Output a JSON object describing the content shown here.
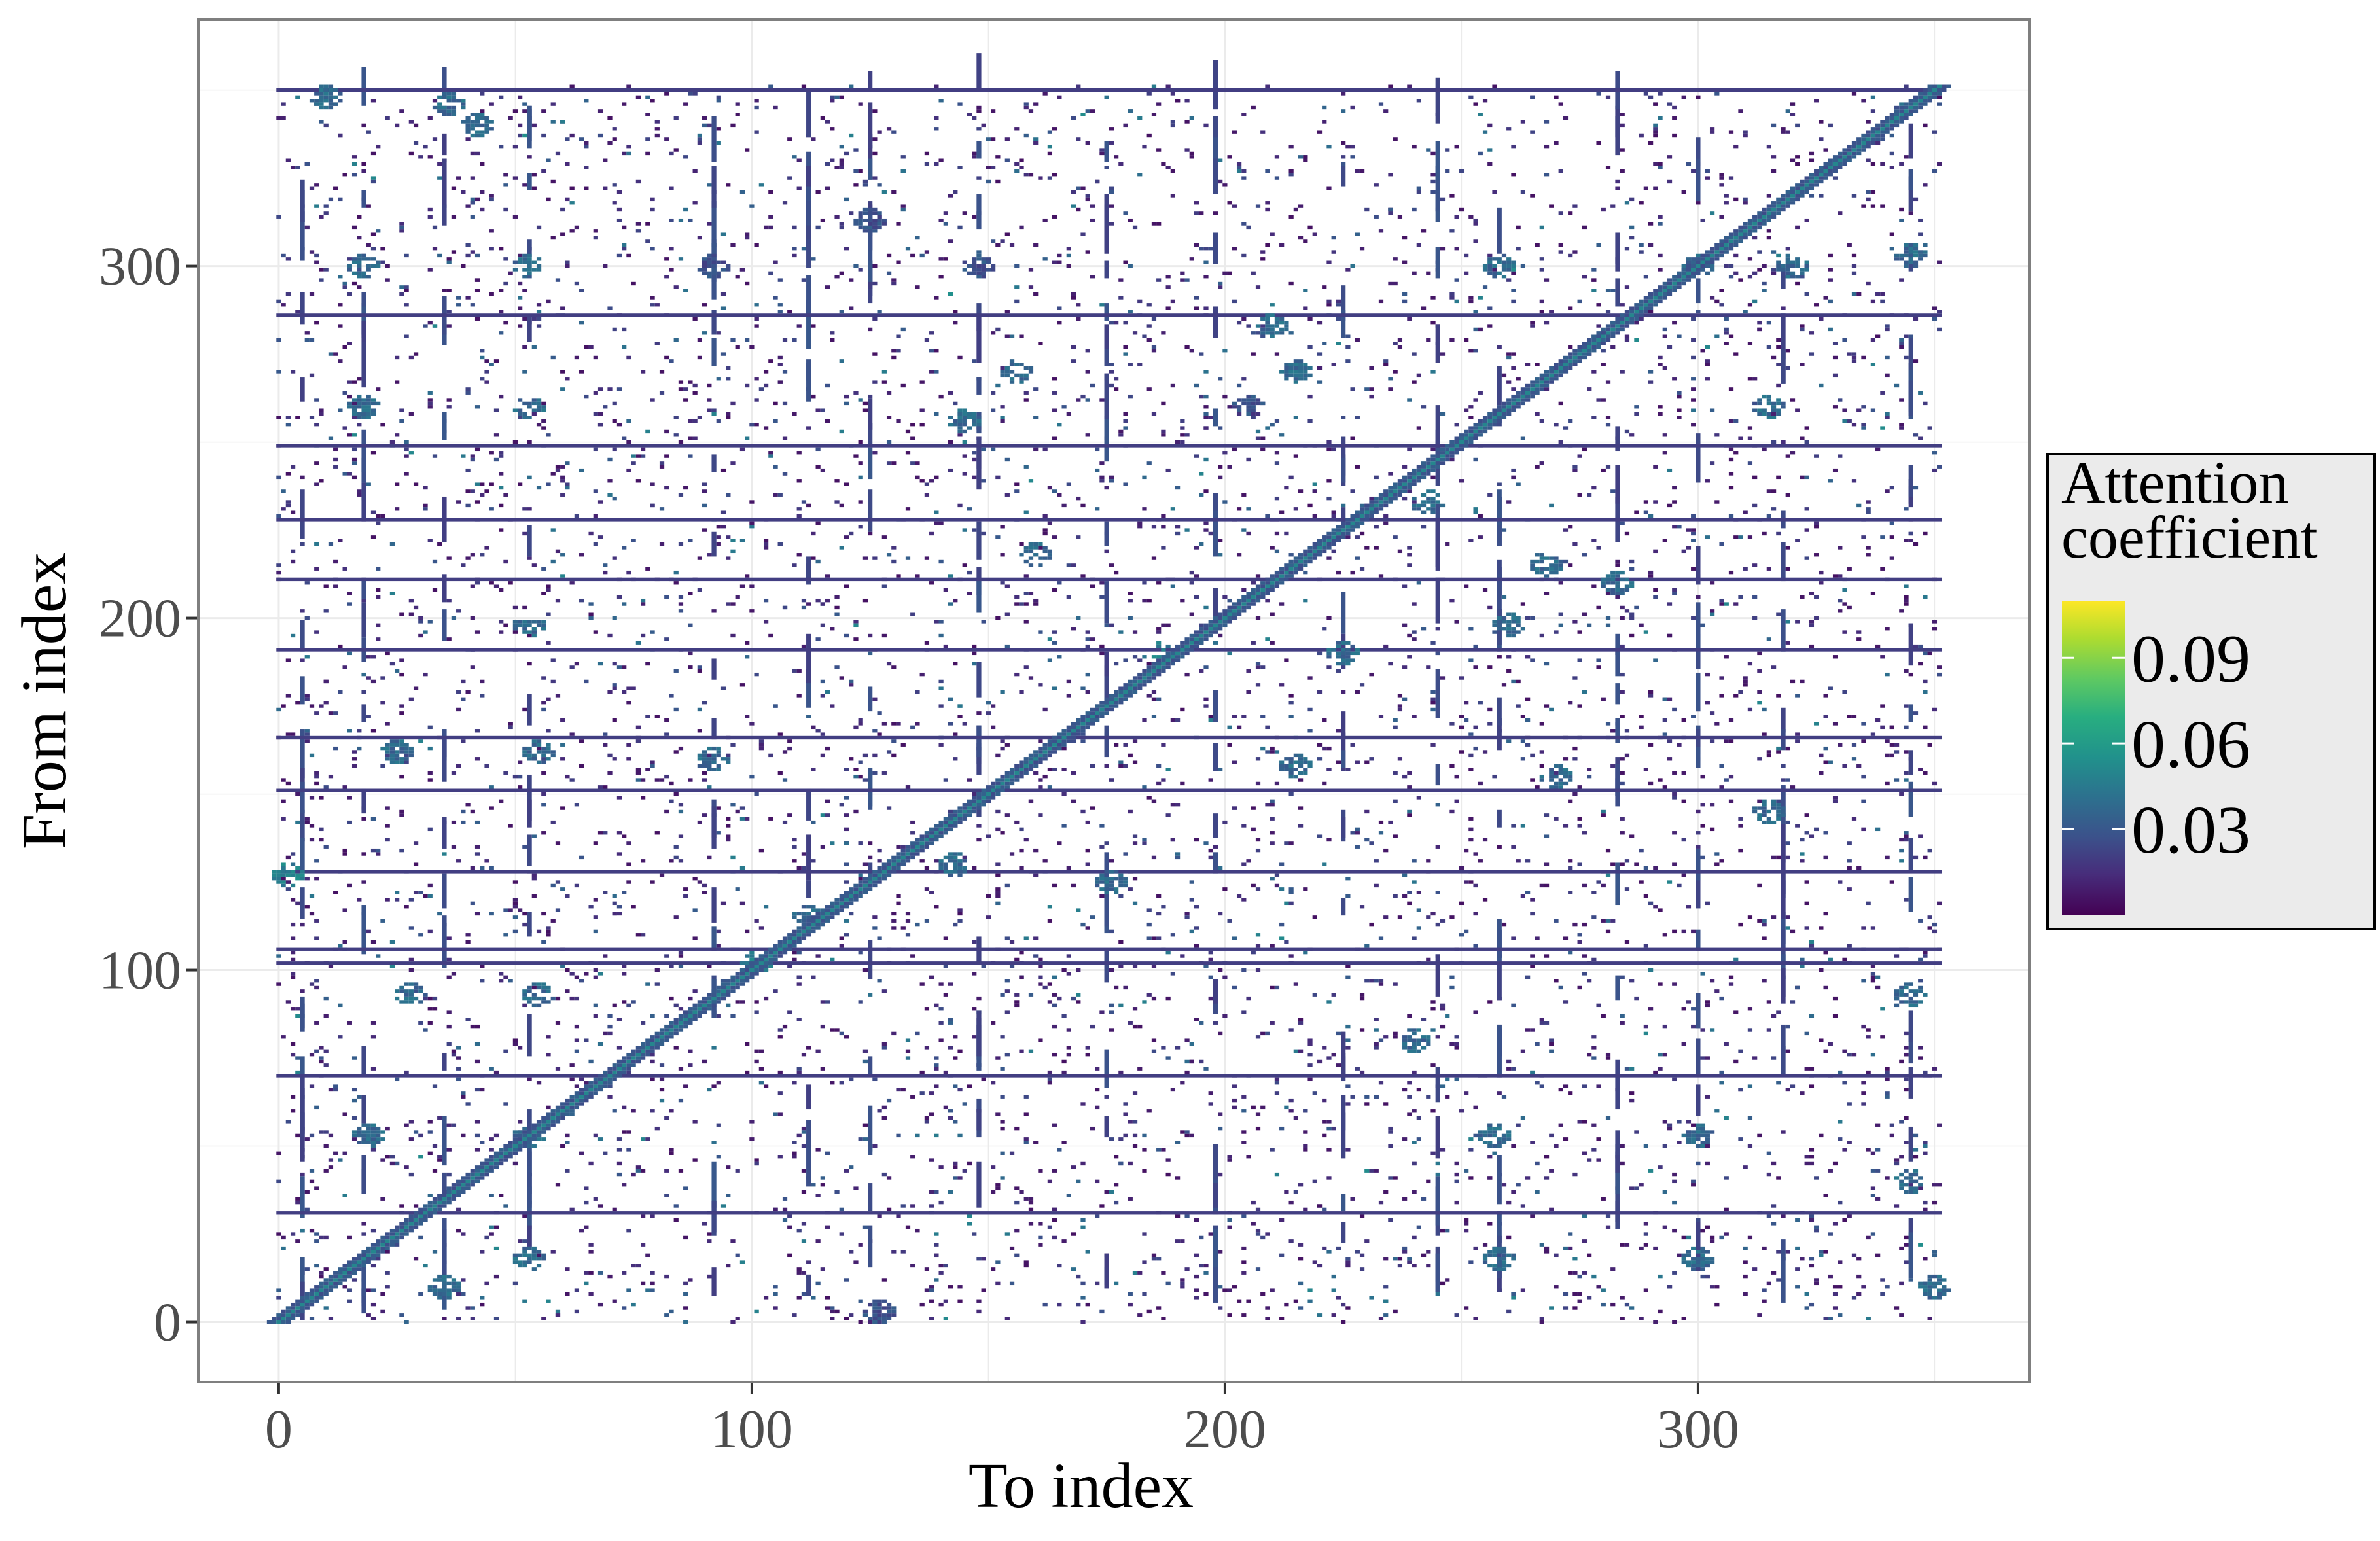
{
  "chart_data": {
    "type": "heatmap",
    "title": "",
    "xlabel": "To index",
    "ylabel": "From index",
    "xlim": [
      -17,
      370
    ],
    "ylim": [
      -17,
      370
    ],
    "x_ticks": [
      0,
      100,
      200,
      300
    ],
    "y_ticks": [
      0,
      100,
      200,
      300
    ],
    "matrix_size": 352,
    "grid": true,
    "legend": {
      "title_lines": [
        "Attention",
        "coefficient"
      ],
      "placement": "right",
      "range": [
        0,
        0.11
      ],
      "ticks": [
        0.03,
        0.06,
        0.09
      ],
      "tick_labels": [
        "0.03",
        "0.06",
        "0.09"
      ],
      "colormap": "viridis"
    },
    "diagonal": {
      "from": 0,
      "to": 352,
      "value": 0.05
    },
    "dense_rows": [
      {
        "y": 350,
        "value": 0.02
      },
      {
        "y": 286,
        "value": 0.02
      },
      {
        "y": 249,
        "value": 0.02
      },
      {
        "y": 228,
        "value": 0.02
      },
      {
        "y": 211,
        "value": 0.02
      },
      {
        "y": 191,
        "value": 0.02
      },
      {
        "y": 166,
        "value": 0.02
      },
      {
        "y": 151,
        "value": 0.02
      },
      {
        "y": 128,
        "value": 0.02
      },
      {
        "y": 106,
        "value": 0.02
      },
      {
        "y": 102,
        "value": 0.02
      },
      {
        "y": 70,
        "value": 0.02
      },
      {
        "y": 31,
        "value": 0.02
      }
    ],
    "contact_spots": [
      {
        "x": 10,
        "y": 348,
        "value": 0.03
      },
      {
        "x": 36,
        "y": 346,
        "value": 0.03
      },
      {
        "x": 42,
        "y": 340,
        "value": 0.03
      },
      {
        "x": 18,
        "y": 300,
        "value": 0.03
      },
      {
        "x": 53,
        "y": 300,
        "value": 0.03
      },
      {
        "x": 92,
        "y": 300,
        "value": 0.02
      },
      {
        "x": 148,
        "y": 300,
        "value": 0.02
      },
      {
        "x": 125,
        "y": 313,
        "value": 0.02
      },
      {
        "x": 210,
        "y": 283,
        "value": 0.03
      },
      {
        "x": 156,
        "y": 270,
        "value": 0.03
      },
      {
        "x": 145,
        "y": 256,
        "value": 0.03
      },
      {
        "x": 215,
        "y": 270,
        "value": 0.03
      },
      {
        "x": 205,
        "y": 260,
        "value": 0.02
      },
      {
        "x": 18,
        "y": 260,
        "value": 0.03
      },
      {
        "x": 53,
        "y": 260,
        "value": 0.03
      },
      {
        "x": 315,
        "y": 260,
        "value": 0.03
      },
      {
        "x": 300,
        "y": 300,
        "value": 0.03
      },
      {
        "x": 320,
        "y": 300,
        "value": 0.03
      },
      {
        "x": 258,
        "y": 300,
        "value": 0.03
      },
      {
        "x": 345,
        "y": 303,
        "value": 0.03
      },
      {
        "x": 243,
        "y": 233,
        "value": 0.03
      },
      {
        "x": 160,
        "y": 218,
        "value": 0.03
      },
      {
        "x": 268,
        "y": 215,
        "value": 0.03
      },
      {
        "x": 283,
        "y": 210,
        "value": 0.03
      },
      {
        "x": 53,
        "y": 198,
        "value": 0.03
      },
      {
        "x": 260,
        "y": 198,
        "value": 0.03
      },
      {
        "x": 225,
        "y": 190,
        "value": 0.03
      },
      {
        "x": 186,
        "y": 190,
        "value": 0.04
      },
      {
        "x": 92,
        "y": 160,
        "value": 0.03
      },
      {
        "x": 215,
        "y": 158,
        "value": 0.03
      },
      {
        "x": 25,
        "y": 162,
        "value": 0.03
      },
      {
        "x": 55,
        "y": 162,
        "value": 0.03
      },
      {
        "x": 270,
        "y": 155,
        "value": 0.03
      },
      {
        "x": 315,
        "y": 145,
        "value": 0.03
      },
      {
        "x": 143,
        "y": 130,
        "value": 0.03
      },
      {
        "x": 176,
        "y": 125,
        "value": 0.03
      },
      {
        "x": 112,
        "y": 115,
        "value": 0.03
      },
      {
        "x": 101,
        "y": 102,
        "value": 0.04
      },
      {
        "x": 240,
        "y": 80,
        "value": 0.03
      },
      {
        "x": 28,
        "y": 93,
        "value": 0.03
      },
      {
        "x": 55,
        "y": 93,
        "value": 0.03
      },
      {
        "x": 345,
        "y": 93,
        "value": 0.03
      },
      {
        "x": 19,
        "y": 53,
        "value": 0.03
      },
      {
        "x": 53,
        "y": 53,
        "value": 0.03
      },
      {
        "x": 257,
        "y": 53,
        "value": 0.03
      },
      {
        "x": 300,
        "y": 53,
        "value": 0.03
      },
      {
        "x": 345,
        "y": 40,
        "value": 0.03
      },
      {
        "x": 350,
        "y": 10,
        "value": 0.03
      },
      {
        "x": 300,
        "y": 18,
        "value": 0.03
      },
      {
        "x": 258,
        "y": 18,
        "value": 0.03
      },
      {
        "x": 35,
        "y": 10,
        "value": 0.03
      },
      {
        "x": 53,
        "y": 18,
        "value": 0.03
      },
      {
        "x": 127,
        "y": 3,
        "value": 0.02
      },
      {
        "x": 2,
        "y": 127,
        "value": 0.04
      }
    ],
    "cross_lines": [
      {
        "axis": "x",
        "at": 5,
        "value": 0.02
      },
      {
        "axis": "x",
        "at": 18,
        "value": 0.02
      },
      {
        "axis": "x",
        "at": 35,
        "value": 0.02
      },
      {
        "axis": "x",
        "at": 53,
        "value": 0.02
      },
      {
        "axis": "x",
        "at": 92,
        "value": 0.02
      },
      {
        "axis": "x",
        "at": 112,
        "value": 0.02
      },
      {
        "axis": "x",
        "at": 125,
        "value": 0.02
      },
      {
        "axis": "x",
        "at": 148,
        "value": 0.02
      },
      {
        "axis": "x",
        "at": 175,
        "value": 0.02
      },
      {
        "axis": "x",
        "at": 198,
        "value": 0.02
      },
      {
        "axis": "x",
        "at": 225,
        "value": 0.02
      },
      {
        "axis": "x",
        "at": 245,
        "value": 0.02
      },
      {
        "axis": "x",
        "at": 258,
        "value": 0.02
      },
      {
        "axis": "x",
        "at": 283,
        "value": 0.02
      },
      {
        "axis": "x",
        "at": 300,
        "value": 0.02
      },
      {
        "axis": "x",
        "at": 318,
        "value": 0.02
      },
      {
        "axis": "x",
        "at": 345,
        "value": 0.02
      }
    ]
  }
}
